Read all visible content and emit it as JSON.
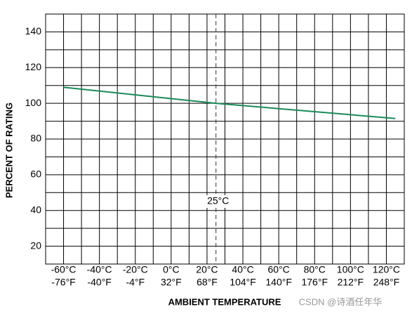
{
  "chart_data": {
    "type": "line",
    "x_label": "AMBIENT TEMPERATURE",
    "y_label": "PERCENT OF RATING",
    "x": [
      -60,
      25,
      125
    ],
    "series": [
      {
        "color": "#1a8a5a",
        "values": [
          109,
          100,
          91.5
        ]
      }
    ],
    "xlim": [
      -70,
      130
    ],
    "xticks": [
      {
        "value": -60,
        "label": "-60°C"
      },
      {
        "value": -40,
        "label": "-40°C"
      },
      {
        "value": -20,
        "label": "-20°C"
      },
      {
        "value": 0,
        "label": "0°C"
      },
      {
        "value": 20,
        "label": "20°C"
      },
      {
        "value": 40,
        "label": "40°C"
      },
      {
        "value": 60,
        "label": "60°C"
      },
      {
        "value": 80,
        "label": "80°C"
      },
      {
        "value": 100,
        "label": "100°C"
      },
      {
        "value": 120,
        "label": "120°C"
      }
    ],
    "xtick_labels_f": [
      "-76°F",
      "-40°F",
      "-4°F",
      "32°F",
      "68°F",
      "104°F",
      "140°F",
      "176°F",
      "212°F",
      "248°F"
    ],
    "minor_xticks": [
      -70,
      -50,
      -30,
      -10,
      10,
      30,
      50,
      70,
      90,
      110,
      130
    ],
    "ylim": [
      10,
      150
    ],
    "yticks": [
      20,
      40,
      60,
      80,
      100,
      120,
      140
    ],
    "minor_yticks": [
      10,
      30,
      50,
      70,
      90,
      110,
      130,
      150
    ],
    "grid": true,
    "ref_x": 25,
    "ref_y": 100,
    "ref_x_label": "25°C",
    "watermark": "CSDN @诗酒任年华"
  }
}
